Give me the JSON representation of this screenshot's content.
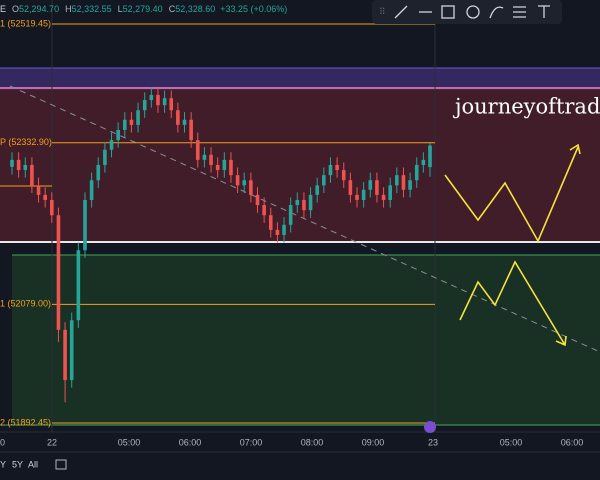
{
  "header": {
    "symbol": "E",
    "ohlc": [
      {
        "k": "O",
        "v": "52,294.70"
      },
      {
        "k": "H",
        "v": "52,332.55"
      },
      {
        "k": "L",
        "v": "52,279.40"
      },
      {
        "k": "C",
        "v": "52,328.60"
      }
    ],
    "change": "+33.25 (+0.06%)"
  },
  "watermark": "journeyoftradi",
  "levels": [
    {
      "value": 52519.45,
      "label": "1 (52519.45)"
    },
    {
      "value": 52332.9,
      "label": "P (52332.90)"
    },
    {
      "value": 52079.0,
      "label": "1 (52079.00)"
    },
    {
      "value": 51892.45,
      "label": "2 (51892.45)"
    }
  ],
  "time_axis": [
    "0",
    "22",
    "05:00",
    "06:00",
    "07:00",
    "08:00",
    "09:00",
    "23",
    "05:00",
    "06:00"
  ],
  "ranges": [
    "Y",
    "5Y",
    "All"
  ],
  "chart_data": {
    "type": "candlestick",
    "ylim": [
      51878.4,
      52557.2
    ],
    "open": [
      52295,
      52306,
      52290,
      52298,
      52266,
      52251,
      52243,
      52219,
      52039,
      51960,
      52054,
      52164,
      52243,
      52274,
      52298,
      52322,
      52337,
      52353,
      52369,
      52361,
      52384,
      52400,
      52408,
      52392,
      52403,
      52384,
      52361,
      52369,
      52337,
      52306,
      52314,
      52298,
      52290,
      52306,
      52282,
      52266,
      52274,
      52251,
      52235,
      52219,
      52196,
      52188,
      52204,
      52235,
      52243,
      52227,
      52251,
      52266,
      52282,
      52298,
      52290,
      52274,
      52251,
      52243,
      52259,
      52274,
      52251,
      52243,
      52266,
      52282,
      52259,
      52274,
      52298,
      52294.7
    ],
    "high": [
      52318,
      52318,
      52310,
      52310,
      52278,
      52263,
      52255,
      52231,
      52051,
      52066,
      52176,
      52255,
      52286,
      52310,
      52334,
      52349,
      52365,
      52381,
      52381,
      52396,
      52412,
      52420,
      52420,
      52415,
      52415,
      52396,
      52381,
      52381,
      52349,
      52326,
      52326,
      52310,
      52318,
      52318,
      52294,
      52286,
      52286,
      52263,
      52247,
      52231,
      52208,
      52216,
      52247,
      52255,
      52255,
      52263,
      52278,
      52294,
      52310,
      52310,
      52302,
      52286,
      52263,
      52271,
      52286,
      52286,
      52263,
      52278,
      52294,
      52294,
      52286,
      52310,
      52318,
      52332.55
    ],
    "low": [
      52283,
      52278,
      52278,
      52254,
      52239,
      52231,
      52207,
      52020,
      51925,
      51948,
      52042,
      52152,
      52231,
      52262,
      52286,
      52310,
      52325,
      52341,
      52349,
      52349,
      52372,
      52388,
      52380,
      52380,
      52372,
      52349,
      52349,
      52325,
      52294,
      52294,
      52286,
      52278,
      52278,
      52270,
      52254,
      52254,
      52239,
      52223,
      52207,
      52184,
      52176,
      52176,
      52192,
      52223,
      52215,
      52215,
      52239,
      52254,
      52270,
      52278,
      52262,
      52239,
      52231,
      52231,
      52247,
      52239,
      52231,
      52231,
      52254,
      52247,
      52247,
      52262,
      52286,
      52279.4
    ],
    "close": [
      52306,
      52290,
      52298,
      52266,
      52251,
      52243,
      52219,
      52039,
      51960,
      52054,
      52164,
      52243,
      52274,
      52298,
      52322,
      52337,
      52353,
      52369,
      52361,
      52384,
      52400,
      52408,
      52392,
      52403,
      52384,
      52361,
      52369,
      52337,
      52306,
      52314,
      52298,
      52290,
      52306,
      52282,
      52266,
      52274,
      52251,
      52235,
      52219,
      52196,
      52188,
      52204,
      52235,
      52243,
      52227,
      52251,
      52266,
      52282,
      52298,
      52290,
      52274,
      52251,
      52243,
      52259,
      52274,
      52251,
      52243,
      52266,
      52282,
      52259,
      52274,
      52298,
      52306,
      52328.6
    ],
    "up_color": "#26a69a",
    "down_color": "#ef5350"
  }
}
